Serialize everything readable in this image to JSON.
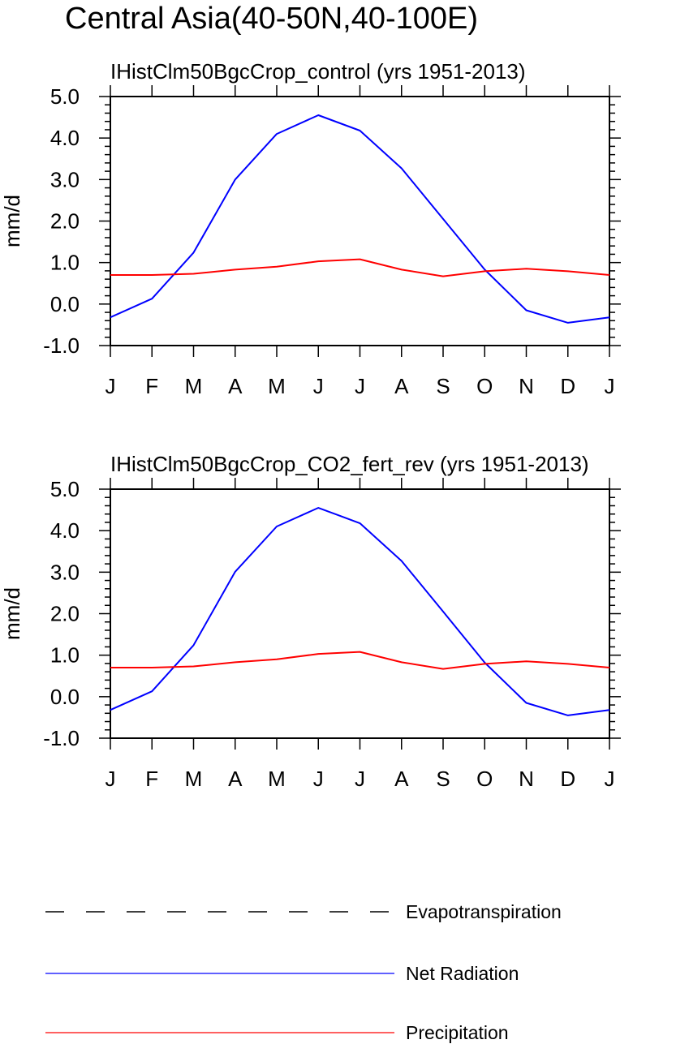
{
  "figure": {
    "title": "Central Asia(40-50N,40-100E)"
  },
  "colors": {
    "net_radiation": "#0000ff",
    "precipitation": "#ff0000",
    "evapotranspiration": "#000000",
    "axis": "#000000"
  },
  "legend": {
    "placement": "bottom",
    "items": [
      {
        "key": "evapotranspiration",
        "label": "Evapotranspiration",
        "style": "dashed"
      },
      {
        "key": "net_radiation",
        "label": "Net Radiation",
        "style": "solid"
      },
      {
        "key": "precipitation",
        "label": "Precipitation",
        "style": "solid"
      }
    ]
  },
  "chart_data": [
    {
      "type": "line",
      "title": "IHistClm50BgcCrop_control (yrs 1951-2013)",
      "xlabel": "",
      "ylabel": "mm/d",
      "ylim": [
        -1.0,
        5.0
      ],
      "yticks": [
        "-1.0",
        "0.0",
        "1.0",
        "2.0",
        "3.0",
        "4.0",
        "5.0"
      ],
      "categories": [
        "J",
        "F",
        "M",
        "A",
        "M",
        "J",
        "J",
        "A",
        "S",
        "O",
        "N",
        "D",
        "J"
      ],
      "grid": false,
      "series": [
        {
          "name": "Net Radiation",
          "key": "net_radiation",
          "values": [
            -0.32,
            0.13,
            1.24,
            3.0,
            4.1,
            4.55,
            4.18,
            3.27,
            2.05,
            0.83,
            -0.15,
            -0.45,
            -0.32
          ]
        },
        {
          "name": "Precipitation",
          "key": "precipitation",
          "values": [
            0.7,
            0.7,
            0.73,
            0.83,
            0.9,
            1.03,
            1.08,
            0.83,
            0.67,
            0.79,
            0.85,
            0.79,
            0.7
          ]
        }
      ]
    },
    {
      "type": "line",
      "title": "IHistClm50BgcCrop_CO2_fert_rev (yrs 1951-2013)",
      "xlabel": "",
      "ylabel": "mm/d",
      "ylim": [
        -1.0,
        5.0
      ],
      "yticks": [
        "-1.0",
        "0.0",
        "1.0",
        "2.0",
        "3.0",
        "4.0",
        "5.0"
      ],
      "categories": [
        "J",
        "F",
        "M",
        "A",
        "M",
        "J",
        "J",
        "A",
        "S",
        "O",
        "N",
        "D",
        "J"
      ],
      "grid": false,
      "series": [
        {
          "name": "Net Radiation",
          "key": "net_radiation",
          "values": [
            -0.32,
            0.13,
            1.24,
            3.01,
            4.1,
            4.55,
            4.18,
            3.27,
            2.05,
            0.82,
            -0.15,
            -0.45,
            -0.32
          ]
        },
        {
          "name": "Precipitation",
          "key": "precipitation",
          "values": [
            0.7,
            0.7,
            0.73,
            0.83,
            0.9,
            1.03,
            1.08,
            0.83,
            0.67,
            0.79,
            0.85,
            0.79,
            0.7
          ]
        }
      ]
    }
  ]
}
